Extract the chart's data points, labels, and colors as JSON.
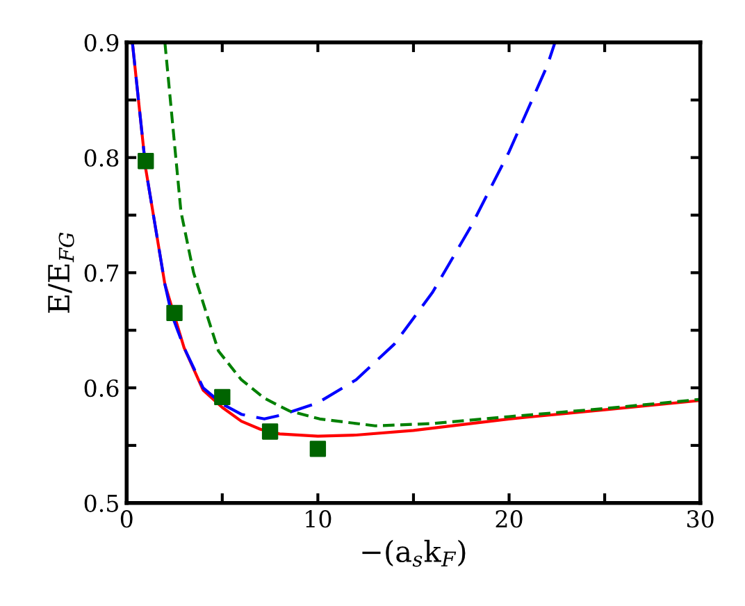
{
  "chart_data": {
    "type": "line",
    "xlabel": "−(a$_{s}$k$_{F}$)",
    "ylabel": "E/E$_{FG}$",
    "xlim": [
      0,
      30
    ],
    "ylim": [
      0.5,
      0.9
    ],
    "xticks": [
      0,
      {
        "value": 5,
        "label": null
      },
      10,
      {
        "value": 15,
        "label": null
      },
      20,
      {
        "value": 25,
        "label": null
      },
      30
    ],
    "yticks": [
      0.5,
      {
        "value": 0.55,
        "label": null
      },
      0.6,
      {
        "value": 0.65,
        "label": null
      },
      0.7,
      {
        "value": 0.75,
        "label": null
      },
      0.8,
      {
        "value": 0.85,
        "label": null
      },
      0.9
    ],
    "grid": false,
    "legend": false,
    "series": [
      {
        "color": "#ff0000",
        "line_style": "solid",
        "x": [
          0.3,
          1,
          2,
          3,
          4,
          5,
          6,
          7,
          8,
          10,
          12,
          15,
          20,
          25,
          30
        ],
        "values": [
          0.9,
          0.79,
          0.69,
          0.635,
          0.598,
          0.583,
          0.571,
          0.564,
          0.56,
          0.558,
          0.559,
          0.563,
          0.573,
          0.581,
          0.589
        ]
      },
      {
        "color": "#0000ff",
        "line_style": "dashed",
        "x": [
          0.3,
          1,
          2,
          2.35,
          3,
          4,
          5,
          6,
          7.2,
          8,
          10,
          12,
          14,
          16,
          18,
          20,
          22,
          22.4
        ],
        "values": [
          0.9,
          0.79,
          0.69,
          0.664,
          0.635,
          0.6,
          0.586,
          0.577,
          0.573,
          0.576,
          0.587,
          0.607,
          0.638,
          0.683,
          0.74,
          0.805,
          0.88,
          0.9
        ]
      },
      {
        "color": "#008000",
        "line_style": "dotted",
        "x": [
          2.0,
          2.84,
          3.5,
          4.8,
          6,
          7.2,
          8.5,
          10.1,
          13,
          16,
          20,
          25,
          30
        ],
        "values": [
          0.9,
          0.753,
          0.7,
          0.632,
          0.607,
          0.591,
          0.58,
          0.573,
          0.567,
          0.569,
          0.575,
          0.582,
          0.59
        ]
      },
      {
        "type": "scatter",
        "color": "#006400",
        "marker": "square",
        "x": [
          1,
          2.5,
          5,
          7.5,
          10
        ],
        "values": [
          0.797,
          0.665,
          0.592,
          0.562,
          0.547
        ]
      }
    ]
  }
}
